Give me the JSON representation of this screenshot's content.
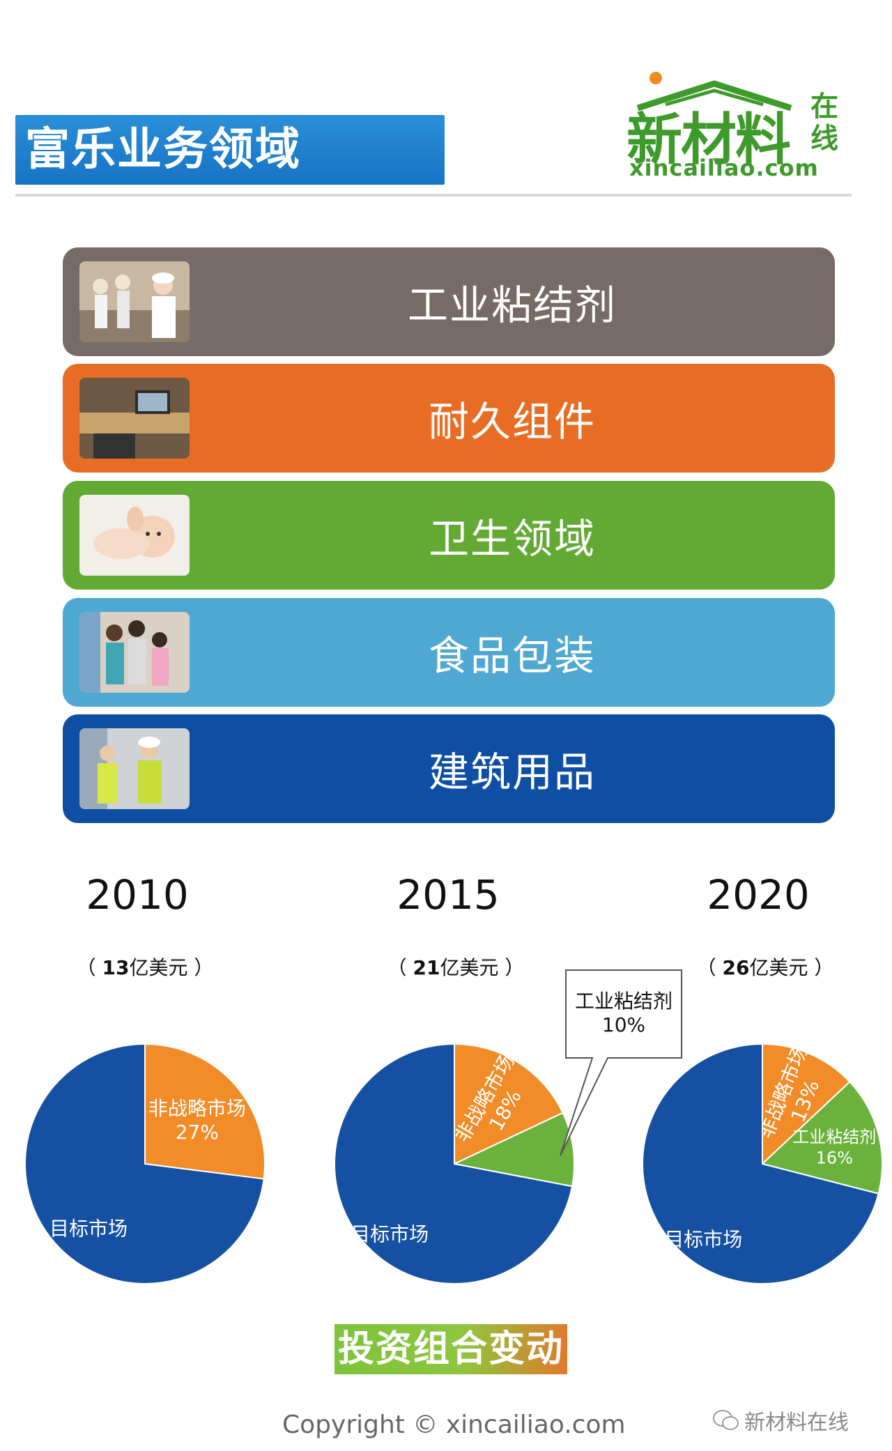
{
  "header": {
    "title": "富乐业务领域",
    "logo": {
      "name": "新材料",
      "side": "在线",
      "url": "xincailiao.com"
    }
  },
  "business_areas": [
    {
      "label": "工业粘结剂",
      "color": "#766b66",
      "photo": "workers-photo"
    },
    {
      "label": "耐久组件",
      "color": "#e86d24",
      "photo": "desk-photo"
    },
    {
      "label": "卫生领域",
      "color": "#62aa34",
      "photo": "baby-photo"
    },
    {
      "label": "食品包装",
      "color": "#4ea8d2",
      "photo": "family-shopping-photo"
    },
    {
      "label": "建筑用品",
      "color": "#0e4ea3",
      "photo": "construction-photo"
    }
  ],
  "chart_data": [
    {
      "type": "pie",
      "title": "2010",
      "subtitle_prefix": "（ ",
      "subtitle_value": "13",
      "subtitle_suffix": "亿美元 ）",
      "slices": [
        {
          "label": "非战略市场",
          "value": 27,
          "value_label": "27%",
          "color": "#f28c28"
        },
        {
          "label": "目标市场",
          "value": 73,
          "value_label": "",
          "color": "#1550a3"
        }
      ]
    },
    {
      "type": "pie",
      "title": "2015",
      "subtitle_prefix": "（ ",
      "subtitle_value": "21",
      "subtitle_suffix": "亿美元 ）",
      "slices": [
        {
          "label": "非战略市场",
          "value": 18,
          "value_label": "18%",
          "color": "#f28c28"
        },
        {
          "label": "工业粘结剂",
          "value": 10,
          "value_label": "10%",
          "color": "#6ab23c"
        },
        {
          "label": "目标市场",
          "value": 72,
          "value_label": "",
          "color": "#1550a3"
        }
      ]
    },
    {
      "type": "pie",
      "title": "2020",
      "subtitle_prefix": "（ ",
      "subtitle_value": "26",
      "subtitle_suffix": "亿美元 ）",
      "slices": [
        {
          "label": "非战略市场",
          "value": 13,
          "value_label": "13%",
          "color": "#f28c28"
        },
        {
          "label": "工业粘结剂",
          "value": 16,
          "value_label": "16%",
          "color": "#6ab23c"
        },
        {
          "label": "目标市场",
          "value": 71,
          "value_label": "",
          "color": "#1550a3"
        }
      ]
    }
  ],
  "portfolio_label": "投资组合变动",
  "copyright": "Copyright © xincailiao.com",
  "watermark": "新材料在线"
}
